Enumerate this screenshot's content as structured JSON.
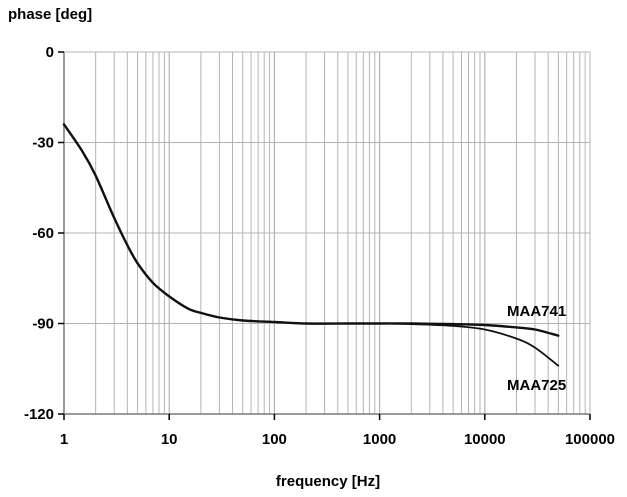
{
  "chart_data": {
    "type": "line",
    "ylabel": "phase [deg]",
    "xlabel": "frequency [Hz]",
    "xscale": "log",
    "xlim": [
      1,
      100000
    ],
    "ylim": [
      -120,
      0
    ],
    "xticks": [
      "1",
      "10",
      "100",
      "1000",
      "10000",
      "100000"
    ],
    "yticks": [
      "0",
      "-30",
      "-60",
      "-90",
      "-120"
    ],
    "grid": true,
    "series": [
      {
        "name": "MAA741",
        "x": [
          1,
          1.5,
          2,
          3,
          4,
          5,
          7,
          10,
          15,
          20,
          30,
          50,
          100,
          200,
          500,
          1000,
          2000,
          5000,
          10000,
          20000,
          30000,
          50000
        ],
        "y": [
          -24,
          -33,
          -41,
          -55,
          -64,
          -70,
          -76.5,
          -81,
          -85,
          -86.5,
          -88,
          -89,
          -89.5,
          -90,
          -90,
          -90,
          -90,
          -90.2,
          -90.5,
          -91.3,
          -92,
          -94
        ]
      },
      {
        "name": "MAA725",
        "x": [
          1,
          1.5,
          2,
          3,
          4,
          5,
          7,
          10,
          15,
          20,
          30,
          50,
          100,
          200,
          500,
          1000,
          2000,
          5000,
          10000,
          20000,
          30000,
          50000
        ],
        "y": [
          -24,
          -33,
          -41,
          -55,
          -64,
          -70,
          -76.5,
          -81,
          -85,
          -86.5,
          -88,
          -89,
          -89.5,
          -90,
          -90,
          -90,
          -90.2,
          -90.8,
          -92,
          -95,
          -98,
          -104
        ]
      }
    ],
    "colors": {
      "line": "#111111",
      "grid": "#b4b4b4",
      "axis": "#000000"
    }
  }
}
